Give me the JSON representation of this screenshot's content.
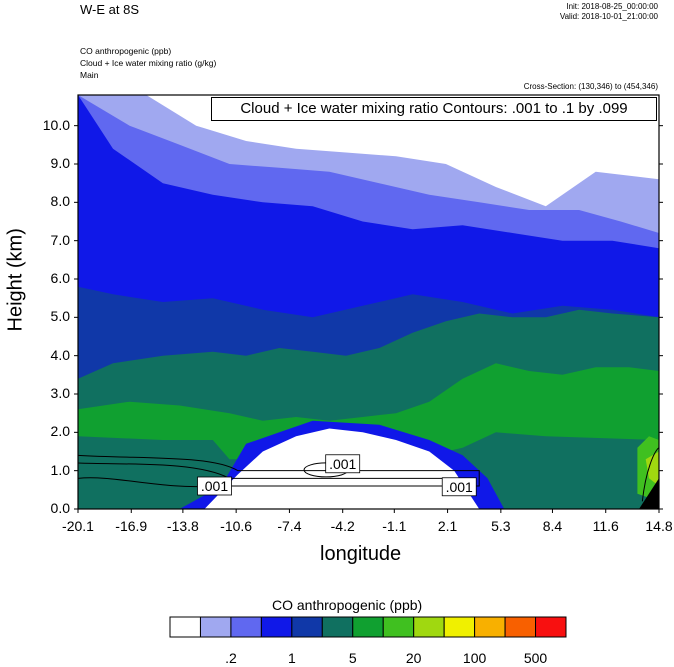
{
  "header": {
    "title": "W-E at 8S",
    "init": "Init: 2018-08-25_00:00:00",
    "valid": "Valid: 2018-10-01_21:00:00",
    "field1": "CO anthropogenic   (ppb)",
    "field2": "Cloud + Ice water mixing ratio   (g/kg)",
    "field3": "Main",
    "cross_section": "Cross-Section: (130,346) to (454,346)"
  },
  "chart_data": {
    "type": "heatmap",
    "xlabel": "longitude",
    "ylabel": "Height (km)",
    "xlim": [
      -20.1,
      14.8
    ],
    "ylim": [
      0.0,
      10.8
    ],
    "xticks": [
      "-20.1",
      "-16.9",
      "-13.8",
      "-10.6",
      "-7.4",
      "-4.2",
      "-1.1",
      "2.1",
      "5.3",
      "8.4",
      "11.6",
      "14.8"
    ],
    "yticks": [
      "0.0",
      "1.0",
      "2.0",
      "3.0",
      "4.0",
      "5.0",
      "6.0",
      "7.0",
      "8.0",
      "9.0",
      "10.0"
    ],
    "contour_text": "Cloud + Ice water mixing ratio Contours: .001 to .1 by .099",
    "contour_labels": [
      ".001",
      ".001",
      ".001"
    ],
    "colorbar": {
      "title": "CO anthropogenic  (ppb)",
      "colors": [
        "#ffffff",
        "#a0a8f0",
        "#6068f0",
        "#1018e8",
        "#1038a8",
        "#107060",
        "#10a030",
        "#40c020",
        "#a0d810",
        "#f0f000",
        "#f8b000",
        "#f86000",
        "#f81010"
      ],
      "tick_labels": [
        ".2",
        "1",
        "5",
        "20",
        "100",
        "500"
      ]
    },
    "layers": [
      {
        "color": "#1018e8",
        "x": [
          -20.1,
          14.8,
          14.8,
          -20.1
        ],
        "y": [
          10.8,
          10.8,
          0,
          0
        ]
      },
      {
        "color": "#6068f0",
        "x": [
          -20.1,
          -18.0,
          -15.0,
          -12.0,
          -9.0,
          -6.0,
          -3.0,
          0.0,
          3.0,
          6.0,
          9.0,
          12.0,
          14.8,
          14.8,
          -20.1
        ],
        "y": [
          10.8,
          9.4,
          8.5,
          8.2,
          8.0,
          7.9,
          7.5,
          7.3,
          7.4,
          7.2,
          7.0,
          7.0,
          6.8,
          10.8,
          10.8
        ]
      },
      {
        "color": "#a0a8f0",
        "x": [
          -20.1,
          -17.0,
          -14.0,
          -11.0,
          -8.0,
          -5.0,
          -2.0,
          1.0,
          4.0,
          7.0,
          10.0,
          12.5,
          14.8,
          14.8,
          -20.1
        ],
        "y": [
          10.8,
          10.0,
          9.5,
          9.0,
          8.9,
          8.8,
          8.5,
          8.2,
          8.0,
          7.8,
          7.8,
          7.5,
          7.2,
          10.8,
          10.8
        ]
      },
      {
        "color": "#ffffff",
        "x": [
          -16.0,
          -13.0,
          -10.0,
          -7.0,
          -4.0,
          -1.0,
          2.0,
          5.0,
          8.0,
          11.0,
          14.8,
          14.8,
          -16.0
        ],
        "y": [
          10.8,
          10.0,
          9.6,
          9.4,
          9.3,
          9.2,
          9.0,
          8.4,
          7.9,
          8.8,
          8.6,
          10.8,
          10.8
        ]
      },
      {
        "color": "#1038a8",
        "x": [
          -20.1,
          -18.0,
          -15.0,
          -12.0,
          -9.0,
          -6.0,
          -3.0,
          0.0,
          3.0,
          6.0,
          9.0,
          12.0,
          14.8,
          14.8,
          -20.1
        ],
        "y": [
          5.8,
          5.6,
          5.4,
          5.5,
          5.2,
          5.0,
          5.3,
          5.6,
          5.4,
          5.1,
          5.3,
          5.2,
          5.0,
          0,
          0
        ]
      },
      {
        "color": "#107060",
        "x": [
          -20.1,
          -18.0,
          -15.0,
          -12.0,
          -10.0,
          -8.0,
          -6.0,
          -4.0,
          -2.0,
          0.0,
          2.0,
          4.0,
          6.0,
          8.0,
          10.0,
          12.0,
          14.8,
          14.8,
          -20.1
        ],
        "y": [
          3.4,
          3.8,
          4.0,
          4.1,
          4.0,
          4.2,
          4.1,
          4.0,
          4.2,
          4.6,
          4.9,
          5.1,
          5.0,
          5.0,
          5.2,
          5.1,
          5.0,
          0,
          0
        ]
      },
      {
        "color": "#10a030",
        "x": [
          -20.1,
          -17.0,
          -14.0,
          -11.0,
          -9.0,
          -7.0,
          -5.0,
          -3.0,
          -1.0,
          1.0,
          3.0,
          5.0,
          7.0,
          9.0,
          11.0,
          13.0,
          14.8,
          14.8,
          -20.1
        ],
        "y": [
          2.6,
          2.8,
          2.7,
          2.5,
          2.3,
          2.4,
          2.3,
          2.4,
          2.5,
          2.8,
          3.4,
          3.8,
          3.6,
          3.5,
          3.7,
          3.7,
          3.6,
          0,
          0
        ]
      },
      {
        "color": "#107060",
        "x": [
          -20.1,
          -15.0,
          -12.0,
          -11.0,
          -10.0,
          1.0,
          3.0,
          5.0,
          8.0,
          14.8,
          14.8,
          -20.1
        ],
        "y": [
          1.9,
          1.8,
          1.8,
          1.3,
          1.3,
          1.4,
          1.6,
          2.0,
          1.9,
          1.8,
          0,
          0
        ]
      },
      {
        "color": "#1018e8",
        "x": [
          -14.0,
          -11.5,
          -10.0,
          -8.0,
          -6.0,
          -2.0,
          1.0,
          3.0,
          4.5,
          5.5,
          5.5,
          -14.0
        ],
        "y": [
          0,
          0.6,
          1.7,
          2.0,
          2.3,
          2.2,
          1.8,
          1.4,
          0.8,
          0,
          0,
          0
        ]
      },
      {
        "color": "#ffffff",
        "x": [
          -12.5,
          -10.5,
          -9.0,
          -7.0,
          -5.0,
          -3.0,
          -1.0,
          1.0,
          2.5,
          4.0,
          4.0,
          -12.5
        ],
        "y": [
          0,
          0.9,
          1.5,
          1.9,
          2.1,
          2.0,
          1.8,
          1.5,
          1.0,
          0,
          0,
          0
        ]
      },
      {
        "color": "#40c020",
        "x": [
          13.5,
          14.2,
          14.8,
          14.8,
          13.5
        ],
        "y": [
          1.6,
          1.9,
          1.8,
          0.2,
          0.4
        ]
      },
      {
        "color": "#a0d810",
        "x": [
          14.0,
          14.8,
          14.8,
          14.2
        ],
        "y": [
          1.3,
          1.5,
          0.6,
          0.8
        ]
      },
      {
        "color": "#000000",
        "x": [
          13.6,
          14.8,
          14.8
        ],
        "y": [
          0,
          0.8,
          0
        ]
      }
    ]
  }
}
